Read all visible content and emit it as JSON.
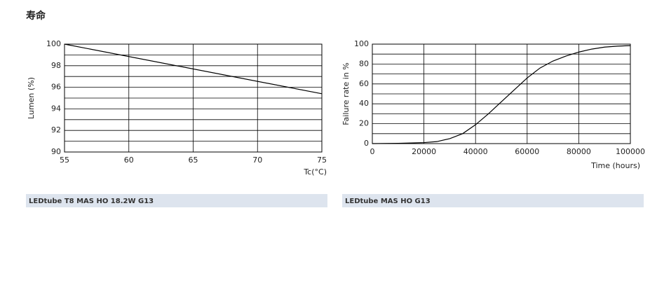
{
  "header": {
    "title": "寿命"
  },
  "captions": [
    "LEDtube T8 MAS HO 18.2W G13",
    "LEDtube MAS HO G13"
  ],
  "chart_data": [
    {
      "type": "line",
      "xlabel": "Tc(°C)",
      "ylabel": "Lumen (%)",
      "x": [
        55,
        75
      ],
      "values": [
        100,
        95.4
      ],
      "color": "#000000",
      "xlim": [
        55,
        75
      ],
      "xticks": [
        55,
        60,
        65,
        70,
        75
      ],
      "ylim": [
        90,
        100
      ],
      "yticks": [
        90,
        92,
        94,
        96,
        98,
        100
      ],
      "yminor": [
        91,
        93,
        95,
        97,
        99
      ],
      "grid": true
    },
    {
      "type": "line",
      "xlabel": "Time (hours)",
      "ylabel": "Failure rate in %",
      "x": [
        0,
        10000,
        20000,
        25000,
        30000,
        35000,
        40000,
        45000,
        50000,
        55000,
        60000,
        65000,
        70000,
        75000,
        80000,
        85000,
        90000,
        95000,
        100000
      ],
      "values": [
        0,
        0.3,
        1,
        2,
        5,
        10,
        19,
        30,
        42,
        54,
        66,
        76,
        83,
        88,
        92,
        95,
        97,
        98,
        98.5
      ],
      "color": "#000000",
      "xlim": [
        0,
        100000
      ],
      "xticks": [
        0,
        20000,
        40000,
        60000,
        80000,
        100000
      ],
      "ylim": [
        0,
        100
      ],
      "yticks": [
        0,
        20,
        40,
        60,
        80,
        100
      ],
      "yminor": [
        10,
        30,
        50,
        70,
        90
      ],
      "grid": true
    }
  ]
}
